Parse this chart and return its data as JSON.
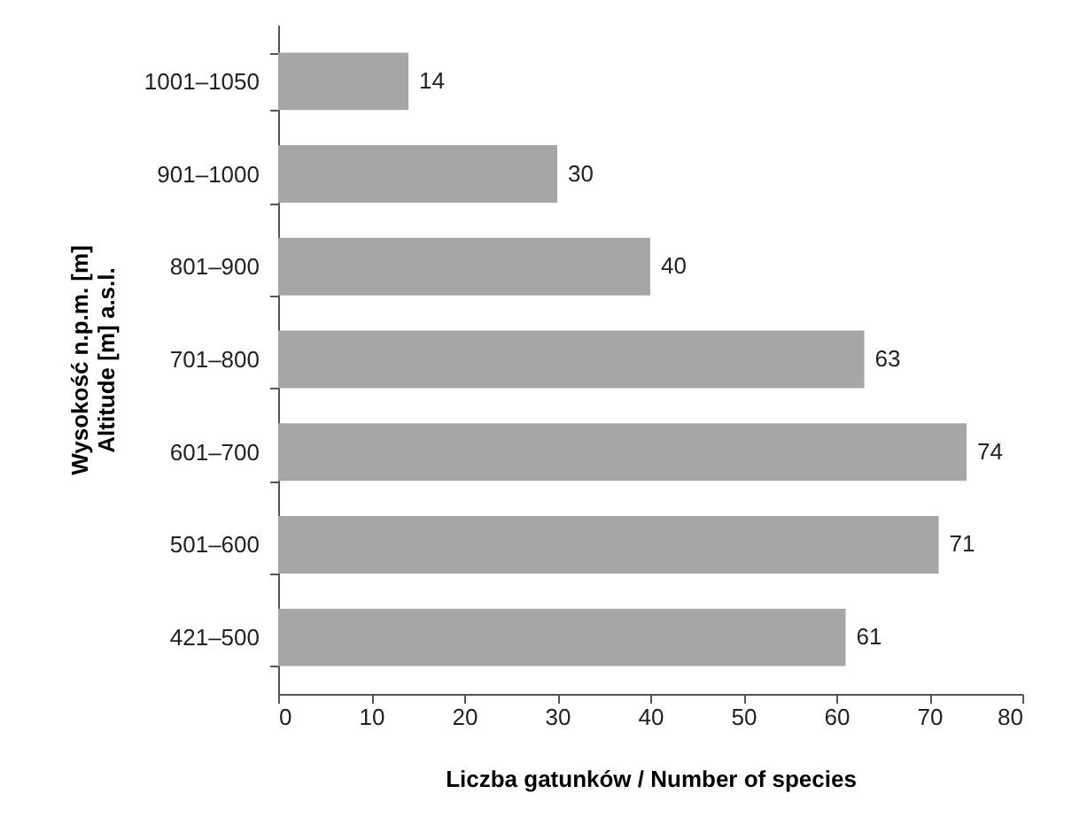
{
  "chart_data": {
    "type": "bar",
    "orientation": "horizontal",
    "xlabel": "Liczba gatunków / Number of species",
    "ylabel": "Wysokość n.p.m. [m]\nAltitude [m] a.s.l.",
    "categories": [
      "1001–1050",
      "901–1000",
      "801–900",
      "701–800",
      "601–700",
      "501–600",
      "421–500"
    ],
    "values": [
      14,
      30,
      40,
      63,
      74,
      71,
      61
    ],
    "color": "#a6a6a6",
    "xlim": [
      0,
      80
    ],
    "xticks": [
      0,
      10,
      20,
      30,
      40,
      50,
      60,
      70,
      80
    ],
    "data_labels": true,
    "grid": false
  }
}
